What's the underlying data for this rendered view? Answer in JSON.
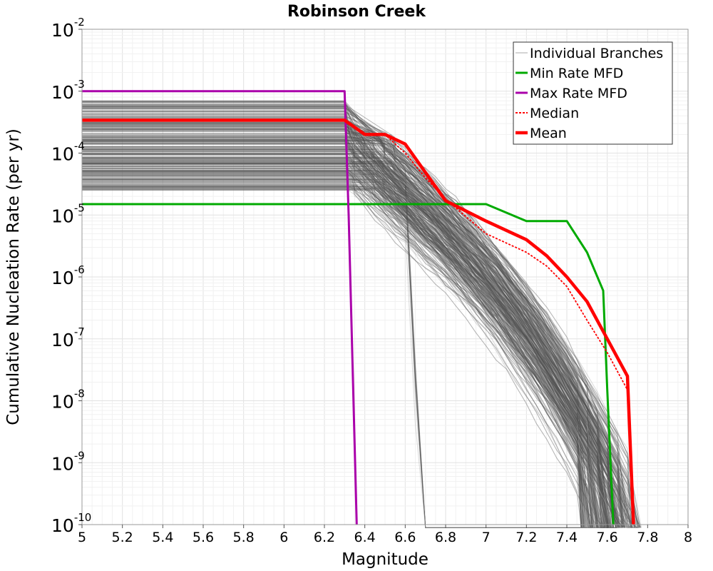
{
  "chart_data": {
    "type": "line",
    "title": "Robinson Creek",
    "xlabel": "Magnitude",
    "ylabel": "Cumulative Nucleation Rate (per yr)",
    "xlim": [
      5,
      8
    ],
    "ylim_log10": [
      -10,
      -2
    ],
    "x_ticks": [
      "5",
      "5.2",
      "5.4",
      "5.6",
      "5.8",
      "6",
      "6.2",
      "6.4",
      "6.6",
      "6.8",
      "7",
      "7.2",
      "7.4",
      "7.6",
      "7.8",
      "8"
    ],
    "x_tick_values": [
      5.0,
      5.2,
      5.4,
      5.6,
      5.8,
      6.0,
      6.2,
      6.4,
      6.6,
      6.8,
      7.0,
      7.2,
      7.4,
      7.6,
      7.8,
      8.0
    ],
    "y_ticks": [
      {
        "base": "10",
        "exp": "-10",
        "value": -10
      },
      {
        "base": "10",
        "exp": "-9",
        "value": -9
      },
      {
        "base": "10",
        "exp": "-8",
        "value": -8
      },
      {
        "base": "10",
        "exp": "-7",
        "value": -7
      },
      {
        "base": "10",
        "exp": "-6",
        "value": -6
      },
      {
        "base": "10",
        "exp": "-5",
        "value": -5
      },
      {
        "base": "10",
        "exp": "-4",
        "value": -4
      },
      {
        "base": "10",
        "exp": "-3",
        "value": -3
      },
      {
        "base": "10",
        "exp": "-2",
        "value": -2
      }
    ],
    "grid": true,
    "legend_position": "top-right",
    "legend": [
      {
        "label": "Individual Branches",
        "color": "#aaaaaa",
        "style": "thin"
      },
      {
        "label": "Min Rate MFD",
        "color": "#00aa00",
        "style": "solid"
      },
      {
        "label": "Max Rate MFD",
        "color": "#aa00aa",
        "style": "solid"
      },
      {
        "label": "Median",
        "color": "#ff0000",
        "style": "dotted"
      },
      {
        "label": "Mean",
        "color": "#ff0000",
        "style": "thick"
      }
    ],
    "series": [
      {
        "name": "Min Rate MFD",
        "color": "#00aa00",
        "points": [
          [
            5.0,
            1.5e-05
          ],
          [
            6.3,
            1.5e-05
          ],
          [
            6.5,
            1.5e-05
          ],
          [
            6.8,
            1.5e-05
          ],
          [
            7.0,
            1.5e-05
          ],
          [
            7.2,
            8e-06
          ],
          [
            7.4,
            8e-06
          ],
          [
            7.5,
            2.5e-06
          ],
          [
            7.58,
            6e-07
          ],
          [
            7.6,
            1.5e-08
          ],
          [
            7.63,
            1e-10
          ]
        ]
      },
      {
        "name": "Max Rate MFD",
        "color": "#aa00aa",
        "points": [
          [
            5.0,
            0.001
          ],
          [
            6.3,
            0.001
          ],
          [
            6.32,
            1e-05
          ],
          [
            6.36,
            1e-10
          ]
        ]
      },
      {
        "name": "Median",
        "color": "#ff0000",
        "points": [
          [
            5.0,
            0.00034
          ],
          [
            6.3,
            0.00034
          ],
          [
            6.4,
            0.0002
          ],
          [
            6.5,
            0.0002
          ],
          [
            6.6,
            0.0001
          ],
          [
            6.7,
            4e-05
          ],
          [
            6.8,
            1.8e-05
          ],
          [
            7.0,
            5e-06
          ],
          [
            7.2,
            2.5e-06
          ],
          [
            7.3,
            1.5e-06
          ],
          [
            7.4,
            7e-07
          ],
          [
            7.5,
            2e-07
          ],
          [
            7.6,
            6e-08
          ],
          [
            7.7,
            1.5e-08
          ],
          [
            7.73,
            1e-10
          ]
        ]
      },
      {
        "name": "Mean",
        "color": "#ff0000",
        "points": [
          [
            5.0,
            0.00034
          ],
          [
            6.3,
            0.00034
          ],
          [
            6.4,
            0.0002
          ],
          [
            6.5,
            0.0002
          ],
          [
            6.6,
            0.00014
          ],
          [
            6.8,
            1.7e-05
          ],
          [
            7.0,
            8e-06
          ],
          [
            7.2,
            4e-06
          ],
          [
            7.3,
            2.2e-06
          ],
          [
            7.4,
            1e-06
          ],
          [
            7.5,
            4e-07
          ],
          [
            7.6,
            1e-07
          ],
          [
            7.7,
            2.5e-08
          ],
          [
            7.73,
            1e-10
          ]
        ]
      }
    ],
    "branches": {
      "count_estimate": 300,
      "color": "#555555",
      "low_rate_range": [
        2.5e-05,
        0.0007
      ],
      "description": "Individual logic-tree branch MFDs spanning the shaded band"
    }
  }
}
